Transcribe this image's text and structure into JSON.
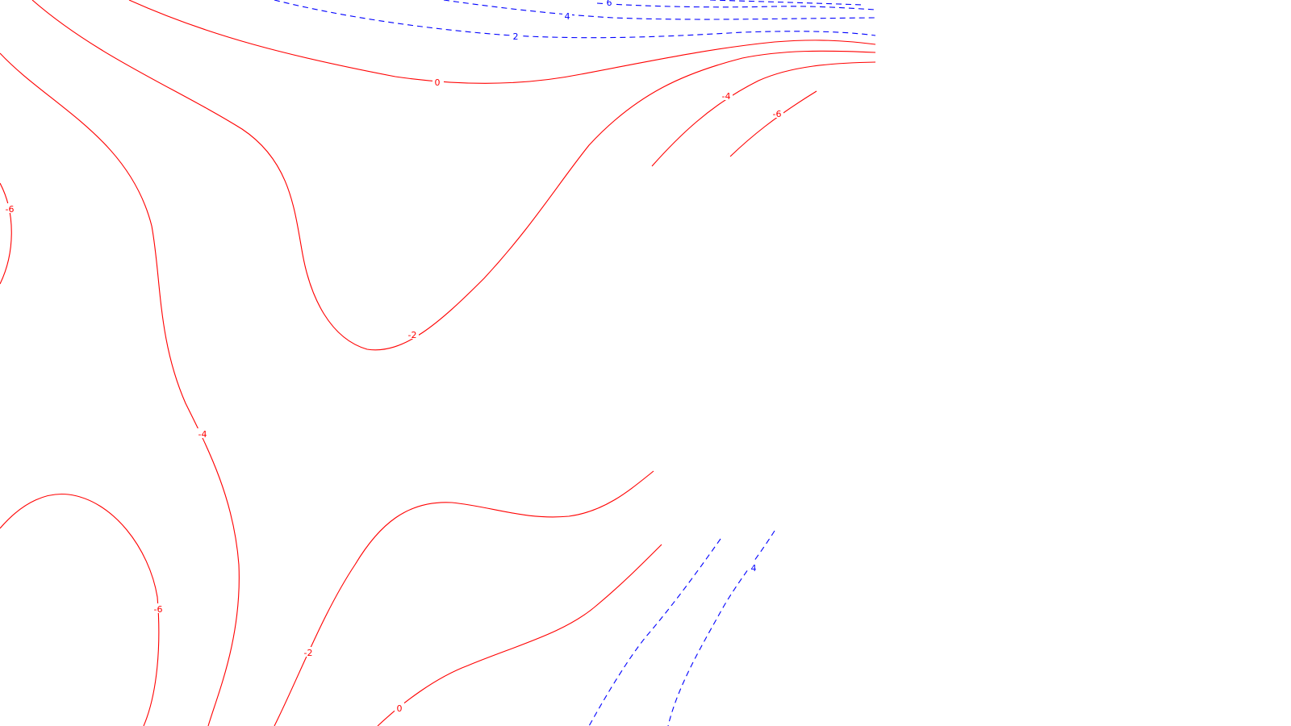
{
  "chart_data": {
    "type": "contour",
    "title": "",
    "xlabel": "",
    "ylabel": "",
    "grid": false,
    "legend": "none",
    "colors": {
      "negative": "#ff0000",
      "positive": "#0000ff"
    },
    "contour_levels": [
      {
        "id": "neg-0-top",
        "level": 0,
        "label": "0",
        "color": "#ff0000",
        "style": "solid"
      },
      {
        "id": "neg-2-upper",
        "level": -2,
        "label": "-2",
        "color": "#ff0000",
        "style": "solid"
      },
      {
        "id": "neg-4-upper-right",
        "level": -4,
        "label": "-4",
        "color": "#ff0000",
        "style": "solid"
      },
      {
        "id": "neg-6-upper-right",
        "level": -6,
        "label": "-6",
        "color": "#ff0000",
        "style": "solid"
      },
      {
        "id": "neg-6-left",
        "level": -6,
        "label": "-6",
        "color": "#ff0000",
        "style": "solid"
      },
      {
        "id": "neg-4-left",
        "level": -4,
        "label": "-4",
        "color": "#ff0000",
        "style": "solid"
      },
      {
        "id": "neg-6-lower-left",
        "level": -6,
        "label": "-6",
        "color": "#ff0000",
        "style": "solid"
      },
      {
        "id": "neg-2-lower",
        "level": -2,
        "label": "-2",
        "color": "#ff0000",
        "style": "solid"
      },
      {
        "id": "neg-0-lower",
        "level": 0,
        "label": "0",
        "color": "#ff0000",
        "style": "solid"
      },
      {
        "id": "pos-2-top",
        "level": 2,
        "label": "2",
        "color": "#0000ff",
        "style": "dashed"
      },
      {
        "id": "pos-4-top",
        "level": 4,
        "label": "4",
        "color": "#0000ff",
        "style": "dashed"
      },
      {
        "id": "pos-6-top",
        "level": 6,
        "label": "6",
        "color": "#0000ff",
        "style": "dashed"
      },
      {
        "id": "pos-4-lower",
        "level": 4,
        "label": "4",
        "color": "#0000ff",
        "style": "dashed"
      }
    ]
  }
}
